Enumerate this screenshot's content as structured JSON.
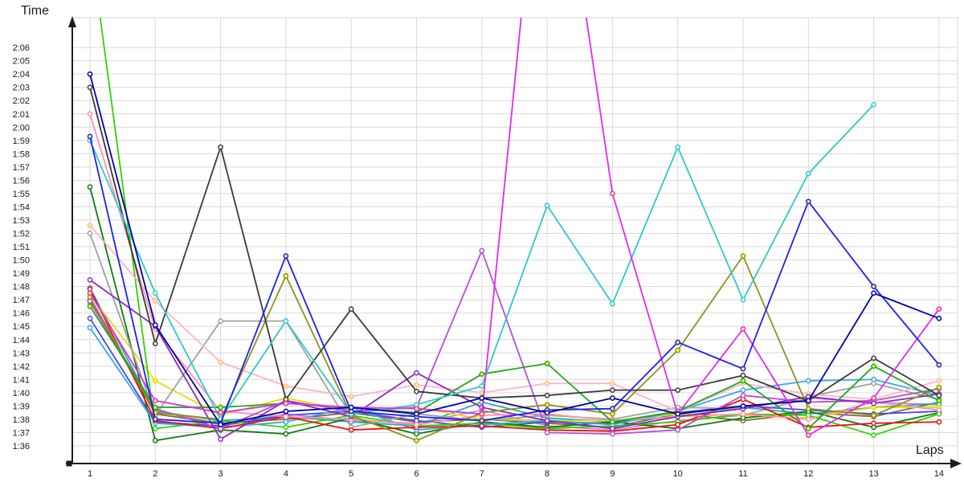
{
  "chart_data": {
    "type": "line",
    "title": "",
    "xlabel": "Laps",
    "ylabel": "Time",
    "x": [
      1,
      2,
      3,
      4,
      5,
      6,
      7,
      8,
      9,
      10,
      11,
      12,
      13,
      14
    ],
    "x_tick_labels": [
      "1",
      "2",
      "3",
      "4",
      "5",
      "6",
      "7",
      "8",
      "9",
      "10",
      "11",
      "12",
      "13",
      "14"
    ],
    "y_tick_labels": [
      "1:36",
      "1:37",
      "1:38",
      "1:39",
      "1:40",
      "1:41",
      "1:42",
      "1:43",
      "1:44",
      "1:45",
      "1:46",
      "1:47",
      "1:48",
      "1:49",
      "1:50",
      "1:51",
      "1:52",
      "1:53",
      "1:54",
      "1:55",
      "1:56",
      "1:57",
      "1:58",
      "1:59",
      "2:00",
      "2:01",
      "2:02",
      "2:03",
      "2:04",
      "2:05",
      "2:06"
    ],
    "y_min_seconds": 96,
    "y_max_seconds": 126,
    "time_format": "m:ss (values below are total seconds; 96 = 1:36)",
    "grid": true,
    "grid_color": "#d9d9d9",
    "axis_color": "#1c1c1c",
    "marker_shape": "open-circle",
    "series": [
      {
        "name": "series-plum",
        "color": "#cc8fd6",
        "marker_fill": "#ffffff",
        "values": [
          106.8,
          98.7,
          97.6,
          98.4,
          97.9,
          97.7,
          98.7,
          97.5,
          97.2,
          97.9,
          98.3,
          99.6,
          99.3,
          99.1
        ]
      },
      {
        "name": "series-brown",
        "color": "#8a6a32",
        "marker_fill": "#ffffff",
        "values": [
          107.0,
          98.4,
          97.7,
          98.0,
          98.5,
          97.8,
          98.0,
          97.7,
          97.4,
          98.4,
          97.9,
          98.5,
          98.2,
          99.3
        ]
      },
      {
        "name": "series-teal",
        "color": "#29afaf",
        "marker_fill": "#ffffff",
        "values": [
          107.9,
          98.6,
          97.9,
          98.2,
          97.8,
          97.5,
          99.3,
          98.1,
          97.8,
          98.2,
          98.9,
          98.4,
          98.9,
          99.2
        ]
      },
      {
        "name": "series-mediumblue",
        "color": "#4848e8",
        "marker_fill": "#ffffff",
        "values": [
          105.6,
          97.8,
          97.5,
          98.3,
          98.6,
          97.9,
          97.4,
          97.8,
          97.7,
          98.5,
          99.0,
          98.7,
          98.4,
          98.6
        ]
      },
      {
        "name": "series-yellow",
        "color": "#e0e000",
        "marker_fill": "#ffff3c",
        "values": [
          107.4,
          100.9,
          98.3,
          99.6,
          98.6,
          98.9,
          98.0,
          97.9,
          97.9,
          98.4,
          98.3,
          98.1,
          98.9,
          98.9
        ]
      },
      {
        "name": "series-darkgreen",
        "color": "#0e7a0e",
        "marker_fill": "#ffffff",
        "values": [
          115.5,
          96.4,
          97.2,
          96.9,
          98.1,
          96.9,
          97.8,
          97.4,
          97.8,
          97.3,
          98.1,
          98.6,
          97.4,
          98.5
        ]
      },
      {
        "name": "series-lime",
        "color": "#2fd500",
        "marker_fill": "#ffffff",
        "values": [
          134.0,
          97.3,
          97.9,
          97.4,
          98.3,
          97.5,
          97.7,
          97.3,
          97.5,
          97.8,
          98.4,
          98.3,
          96.8,
          98.4
        ]
      },
      {
        "name": "series-skyblue",
        "color": "#35a7f0",
        "marker_fill": "#ffffff",
        "values": [
          104.9,
          97.7,
          97.4,
          97.8,
          98.9,
          97.2,
          97.6,
          97.9,
          97.6,
          98.6,
          100.2,
          100.9,
          101.0,
          99.8
        ]
      },
      {
        "name": "series-gray",
        "color": "#a0a0a0",
        "marker_fill": "#ffffff",
        "values": [
          112.0,
          98.3,
          105.4,
          105.4,
          97.4,
          98.4,
          97.9,
          98.3,
          98.0,
          98.9,
          98.8,
          99.7,
          100.7,
          99.5
        ]
      },
      {
        "name": "series-red",
        "color": "#ee1010",
        "marker_fill": "#ffffff",
        "values": [
          107.8,
          97.9,
          97.3,
          98.2,
          97.2,
          97.4,
          97.5,
          97.2,
          97.1,
          97.6,
          99.5,
          97.4,
          97.7,
          97.8
        ]
      },
      {
        "name": "series-pink",
        "color": "#ff8fb0",
        "marker_fill": "#ffffff",
        "values": [
          121.0,
          104.8,
          98.6,
          98.2,
          98.0,
          97.6,
          98.3,
          98.4,
          97.9,
          98.2,
          98.4,
          98.0,
          99.3,
          98.7
        ]
      },
      {
        "name": "series-lightpink",
        "color": "#ffb3c8",
        "marker_fill": "#ffff3c",
        "values": [
          112.6,
          106.9,
          102.3,
          100.5,
          99.7,
          100.6,
          100.0,
          100.7,
          100.7,
          98.6,
          100.7,
          99.9,
          99.5,
          100.9
        ]
      },
      {
        "name": "series-orchid",
        "color": "#b44fd2",
        "marker_fill": "#ffffff",
        "values": [
          106.9,
          98.8,
          97.3,
          99.4,
          98.6,
          98.9,
          110.7,
          97.0,
          96.9,
          97.2,
          99.8,
          99.3,
          99.4,
          100.3
        ]
      },
      {
        "name": "series-purple",
        "color": "#8a2bbe",
        "marker_fill": "#ffffff",
        "values": [
          108.5,
          105.0,
          96.5,
          99.4,
          98.2,
          101.5,
          98.9,
          97.9,
          97.3,
          98.2,
          98.8,
          99.7,
          99.2,
          99.9
        ]
      },
      {
        "name": "series-olive",
        "color": "#90901e",
        "marker_fill": "#ffff3c",
        "values": [
          107.2,
          98.5,
          98.0,
          108.8,
          98.3,
          96.4,
          98.5,
          99.1,
          98.4,
          103.2,
          110.3,
          98.8,
          98.3,
          100.4
        ]
      },
      {
        "name": "series-green",
        "color": "#1fa81f",
        "marker_fill": "#ffff3c",
        "values": [
          106.5,
          98.9,
          98.9,
          99.2,
          98.9,
          98.5,
          101.4,
          102.2,
          97.8,
          98.6,
          100.9,
          97.3,
          102.0,
          99.4
        ]
      },
      {
        "name": "series-black",
        "color": "#3a3a3a",
        "marker_fill": "#ffffff",
        "values": [
          123.0,
          103.7,
          118.5,
          99.5,
          106.3,
          100.1,
          99.6,
          99.8,
          100.2,
          100.2,
          101.3,
          99.4,
          102.6,
          99.8
        ]
      },
      {
        "name": "series-turquoise",
        "color": "#2fc8c8",
        "marker_fill": "#ffffff",
        "values": [
          119.0,
          107.5,
          98.0,
          105.4,
          98.4,
          99.1,
          100.5,
          114.1,
          106.7,
          118.5,
          107.0,
          116.5,
          121.7,
          null
        ]
      },
      {
        "name": "series-magenta",
        "color": "#dd2cee",
        "marker_fill": "#ffff3c",
        "values": [
          107.5,
          99.4,
          98.5,
          99.2,
          98.9,
          98.8,
          98.4,
          148.0,
          115.0,
          98.4,
          104.8,
          96.8,
          99.6,
          106.3
        ]
      },
      {
        "name": "series-blue",
        "color": "#1f1ff0",
        "marker_fill": "#ffff3c",
        "values": [
          119.3,
          98.0,
          97.7,
          110.3,
          98.6,
          98.2,
          97.9,
          98.7,
          98.8,
          103.8,
          101.8,
          114.4,
          108.0,
          102.1
        ]
      },
      {
        "name": "series-navy",
        "color": "#0000a0",
        "marker_fill": "#ffffff",
        "values": [
          124.0,
          105.1,
          97.6,
          98.6,
          98.9,
          98.4,
          99.6,
          98.5,
          99.6,
          98.4,
          99.0,
          99.4,
          107.5,
          105.6
        ]
      }
    ]
  }
}
